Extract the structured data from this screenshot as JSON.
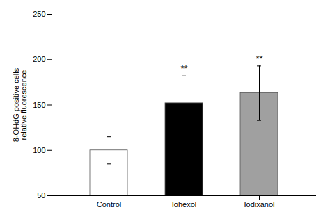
{
  "chart_data": {
    "type": "bar",
    "categories": [
      "Control",
      "Iohexol",
      "Iodixanol"
    ],
    "values": [
      100,
      152,
      163
    ],
    "errors": [
      15,
      30,
      30
    ],
    "colors": [
      "#ffffff",
      "#000000",
      "#a0a0a0"
    ],
    "significance": [
      null,
      "**",
      "**"
    ],
    "ylabel": "8-OHdG positive cells\nrelative fluorescence",
    "ylim": [
      50,
      250
    ],
    "yticks": [
      50,
      100,
      150,
      200,
      250
    ],
    "grid": false
  }
}
